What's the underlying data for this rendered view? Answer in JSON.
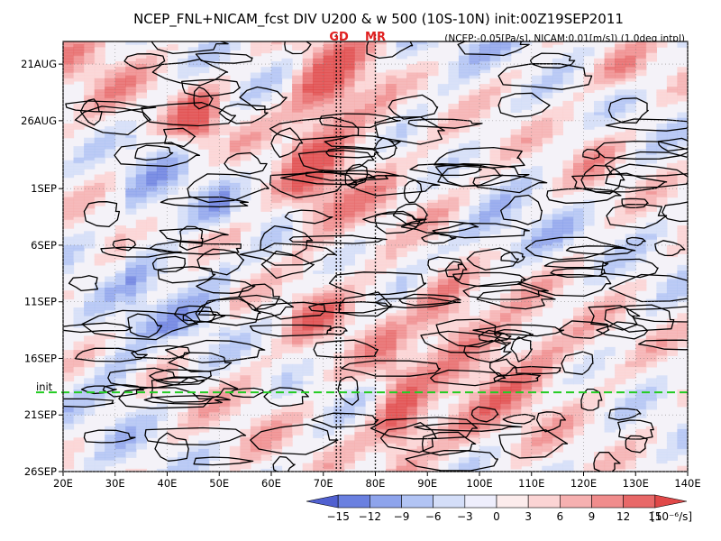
{
  "chart_data": {
    "type": "heatmap",
    "title": "NCEP_FNL+NICAM_fcst DIV U200 & w 500 (10S-10N) init:00Z19SEP2011",
    "subtitle": "(NCEP:-0.05[Pa/s], NICAM:0.01[m/s]) (1.0deg intpl)",
    "x_ticks": [
      "20E",
      "30E",
      "40E",
      "50E",
      "60E",
      "70E",
      "80E",
      "90E",
      "100E",
      "110E",
      "120E",
      "130E",
      "140E"
    ],
    "x_tick_values": [
      20,
      30,
      40,
      50,
      60,
      70,
      80,
      90,
      100,
      110,
      120,
      130,
      140
    ],
    "xlim": [
      20,
      140
    ],
    "y_ticks": [
      "21AUG",
      "26AUG",
      "1SEP",
      "6SEP",
      "11SEP",
      "16SEP",
      "21SEP",
      "26SEP"
    ],
    "y_tick_values": [
      "2011-08-21",
      "2011-08-26",
      "2011-09-01",
      "2011-09-06",
      "2011-09-11",
      "2011-09-16",
      "2011-09-21",
      "2011-09-26"
    ],
    "ylim": [
      "2011-08-19",
      "2011-09-26"
    ],
    "y_direction": "time increases downward",
    "init_label": "init",
    "init_date": "2011-09-19",
    "init_line_color": "#22cc22",
    "markers": [
      {
        "label": "GD",
        "lon": 73
      },
      {
        "label": "MR",
        "lon": 80
      }
    ],
    "marker_line_lons": [
      72.5,
      73.3,
      80
    ],
    "marker_color": "#e02020",
    "colorbar": {
      "levels": [
        -15,
        -12,
        -9,
        -6,
        -3,
        0,
        3,
        6,
        9,
        12,
        15
      ],
      "labels": [
        "−15",
        "−12",
        "−9",
        "−6",
        "−3",
        "0",
        "3",
        "6",
        "9",
        "12",
        "15"
      ],
      "unit": "[10⁻⁶/s]",
      "colors": [
        "#5060d0",
        "#6a80e0",
        "#8ea4ec",
        "#b2c4f4",
        "#d4def8",
        "#eeeefc",
        "#fcecec",
        "#fbd4d4",
        "#f6b0b0",
        "#f08c8c",
        "#e86868",
        "#e04848"
      ]
    }
  }
}
